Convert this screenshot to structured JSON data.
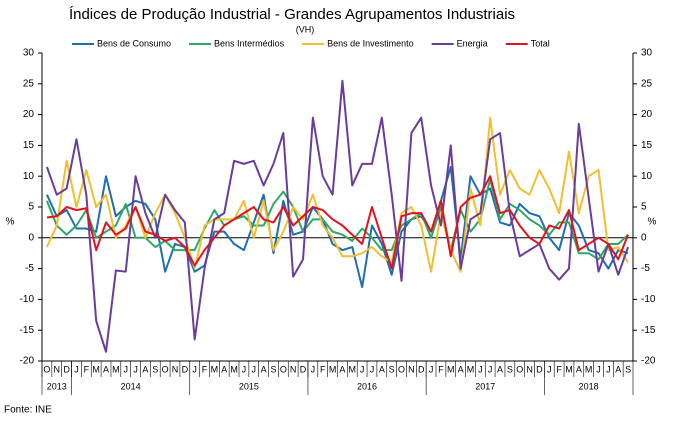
{
  "chart_data": {
    "type": "line",
    "title": "Índices de Produção Industrial - Grandes Agrupamentos Industriais",
    "subtitle": "(VH)",
    "ylabel": "%",
    "y2label": "%",
    "source": "Fonte: INE",
    "categories": [
      "O",
      "N",
      "D",
      "J",
      "F",
      "M",
      "A",
      "M",
      "J",
      "J",
      "A",
      "S",
      "O",
      "N",
      "D",
      "J",
      "F",
      "M",
      "A",
      "M",
      "J",
      "J",
      "A",
      "S",
      "O",
      "N",
      "D",
      "J",
      "F",
      "M",
      "A",
      "M",
      "J",
      "J",
      "A",
      "S",
      "O",
      "N",
      "D",
      "J",
      "F",
      "M",
      "A",
      "M",
      "J",
      "J",
      "A",
      "S",
      "O",
      "N",
      "D",
      "J",
      "F",
      "M",
      "A",
      "M",
      "J",
      "J",
      "A",
      "S"
    ],
    "years": [
      "2013",
      "2014",
      "2015",
      "2016",
      "2017",
      "2018"
    ],
    "ylim": [
      -20,
      30
    ],
    "yticks": [
      -20,
      -15,
      -10,
      -5,
      0,
      5,
      10,
      15,
      20,
      25,
      30
    ],
    "y2lim": [
      -20,
      30
    ],
    "y2ticks": [
      -20,
      -15,
      -10,
      -5,
      0,
      5,
      10,
      15,
      20,
      25,
      30
    ],
    "series": [
      {
        "name": "Bens de Consumo",
        "color": "#1f6fae",
        "values": [
          7,
          3.5,
          4.5,
          1.5,
          1.5,
          1,
          10,
          3.5,
          5,
          6,
          5.5,
          3,
          -5.5,
          -1,
          -1.5,
          -5.5,
          -4.5,
          1,
          1,
          -1,
          -2,
          2.5,
          7,
          -2.5,
          6,
          0.5,
          1,
          5,
          3,
          -1,
          -2,
          -1.5,
          -8,
          2,
          -1,
          -6,
          1,
          3,
          3.5,
          1,
          6,
          11.5,
          -3.5,
          10,
          7,
          8,
          2.5,
          2,
          5.5,
          4,
          3.5,
          0,
          -2,
          4,
          2,
          -2,
          -2.5,
          -5,
          -2,
          -2.5
        ]
      },
      {
        "name": "Bens Intermédios",
        "color": "#2ea866",
        "values": [
          6,
          2,
          0.5,
          2,
          4.5,
          0,
          1,
          2,
          5.5,
          0,
          0,
          -1.5,
          -0.5,
          -2,
          -2,
          -2,
          1.5,
          4.5,
          2,
          3,
          3.5,
          2,
          2,
          5.5,
          7.5,
          5,
          1,
          3,
          3,
          1,
          0.5,
          -0.5,
          1.5,
          0,
          -2,
          -2,
          2,
          3,
          4,
          0,
          5,
          -2,
          4.5,
          1,
          3,
          9.5,
          3,
          5.5,
          4.5,
          3,
          2,
          0.5,
          2.5,
          2.5,
          -2.5,
          -2.5,
          -3.5,
          -1,
          -1,
          0.5
        ]
      },
      {
        "name": "Bens de Investimento",
        "color": "#f0c030",
        "values": [
          -1.5,
          2,
          12.5,
          5,
          11,
          5,
          7,
          0,
          2,
          5,
          0,
          4,
          7,
          4,
          0,
          -5,
          2,
          3,
          3,
          3,
          6,
          0,
          6,
          -2,
          1,
          5,
          3,
          7,
          2,
          0,
          -3,
          -3,
          -2.5,
          -1.5,
          -3,
          -4,
          4,
          5,
          2,
          -5.5,
          4,
          -2,
          -5.5,
          8,
          2,
          19.5,
          7,
          11,
          8,
          7,
          11,
          8,
          4,
          14,
          4,
          10,
          11,
          -2,
          -1.5,
          -4
        ]
      },
      {
        "name": "Energia",
        "color": "#6a3d9a",
        "values": [
          11.5,
          7,
          8,
          16,
          7,
          -13.5,
          -18.5,
          -5.3,
          -5.5,
          10,
          4,
          0,
          7,
          4.5,
          2.5,
          -16.5,
          -5,
          3,
          4,
          12.5,
          12,
          12.5,
          8.5,
          12,
          17,
          -6.3,
          -3.5,
          19.5,
          10,
          7,
          25.5,
          8.5,
          12,
          12,
          19.5,
          7,
          -7,
          17,
          19.5,
          8.5,
          2,
          15,
          -5,
          3,
          4,
          16,
          17,
          4,
          -3,
          -2,
          -1,
          -5,
          -6.8,
          -5,
          18.5,
          6.5,
          -5.5,
          -1,
          -6,
          -1.5
        ]
      },
      {
        "name": "Total",
        "color": "#e0141e",
        "values": [
          3.3,
          3.5,
          5,
          4.5,
          4.8,
          -2,
          2.5,
          0.5,
          1.5,
          5,
          1,
          0.5,
          -0.5,
          0,
          -1.5,
          -4.5,
          -2,
          0,
          2,
          3,
          4,
          5,
          3,
          2.5,
          5,
          2,
          3.5,
          5,
          4.5,
          3,
          2,
          0.5,
          -1,
          5,
          0,
          -5,
          3.5,
          4,
          4,
          1,
          6,
          -3,
          5,
          6.5,
          7,
          10,
          4,
          4.5,
          2,
          0,
          -1,
          2,
          1.5,
          4.5,
          -2,
          -1,
          0,
          -1,
          -3.5,
          0.5
        ]
      }
    ]
  }
}
